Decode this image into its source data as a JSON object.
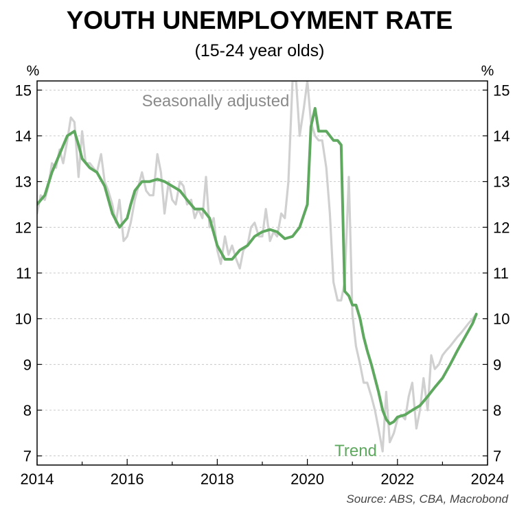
{
  "chart_data": {
    "type": "line",
    "title": "YOUTH UNEMPLOYMENT RATE",
    "subtitle": "(15-24 year olds)",
    "y_unit_left": "%",
    "y_unit_right": "%",
    "xlim": [
      2014,
      2024
    ],
    "ylim": [
      6.8,
      15.2
    ],
    "xticks": [
      "2014",
      "2016",
      "2018",
      "2020",
      "2022",
      "2024"
    ],
    "yticks": [
      "7",
      "8",
      "9",
      "10",
      "11",
      "12",
      "13",
      "14",
      "15"
    ],
    "grid": true,
    "source": "Source: ABS, CBA, Macrobond",
    "annotations": {
      "seasonally_adjusted": "Seasonally adjusted",
      "trend": "Trend"
    },
    "colors": {
      "seasonally_adjusted": "#d0d0d0",
      "trend": "#5fa85f",
      "annotation_sa": "#8a8a8a",
      "annotation_trend": "#5fa85f",
      "grid": "#c8c8c8"
    },
    "series": [
      {
        "name": "Seasonally adjusted",
        "x": [
          2014.0,
          2014.08,
          2014.17,
          2014.25,
          2014.33,
          2014.42,
          2014.5,
          2014.58,
          2014.67,
          2014.75,
          2014.83,
          2014.92,
          2015.0,
          2015.08,
          2015.17,
          2015.25,
          2015.33,
          2015.42,
          2015.5,
          2015.58,
          2015.67,
          2015.75,
          2015.83,
          2015.92,
          2016.0,
          2016.08,
          2016.17,
          2016.25,
          2016.33,
          2016.42,
          2016.5,
          2016.58,
          2016.67,
          2016.75,
          2016.83,
          2016.92,
          2017.0,
          2017.08,
          2017.17,
          2017.25,
          2017.33,
          2017.42,
          2017.5,
          2017.58,
          2017.67,
          2017.75,
          2017.83,
          2017.92,
          2018.0,
          2018.08,
          2018.17,
          2018.25,
          2018.33,
          2018.42,
          2018.5,
          2018.58,
          2018.67,
          2018.75,
          2018.83,
          2018.92,
          2019.0,
          2019.08,
          2019.17,
          2019.25,
          2019.33,
          2019.42,
          2019.5,
          2019.58,
          2019.67,
          2019.75,
          2019.83,
          2019.92,
          2020.0,
          2020.08,
          2020.17,
          2020.25,
          2020.33,
          2020.42,
          2020.5,
          2020.58,
          2020.67,
          2020.75,
          2020.83,
          2020.92,
          2021.0,
          2021.08,
          2021.17,
          2021.25,
          2021.33,
          2021.42,
          2021.5,
          2021.58,
          2021.67,
          2021.75,
          2021.83,
          2021.92,
          2022.0,
          2022.08,
          2022.17,
          2022.25,
          2022.33,
          2022.42,
          2022.5,
          2022.58,
          2022.67,
          2022.75,
          2022.83,
          2022.92,
          2023.0,
          2023.08,
          2023.17,
          2023.25,
          2023.33,
          2023.42,
          2023.5,
          2023.58,
          2023.67,
          2023.75
        ],
        "values": [
          12.3,
          12.7,
          12.6,
          12.9,
          13.4,
          13.3,
          13.7,
          13.4,
          13.9,
          14.4,
          14.3,
          13.1,
          14.1,
          13.4,
          13.4,
          13.3,
          13.2,
          13.6,
          13.0,
          12.8,
          12.5,
          12.1,
          12.6,
          11.7,
          11.8,
          12.1,
          12.6,
          12.9,
          13.2,
          12.8,
          12.7,
          12.7,
          13.6,
          13.2,
          12.3,
          13.0,
          12.6,
          12.5,
          13.0,
          12.9,
          12.5,
          12.6,
          12.2,
          12.4,
          12.2,
          13.1,
          12.0,
          12.2,
          11.5,
          11.2,
          11.8,
          11.4,
          11.6,
          11.3,
          11.1,
          11.5,
          11.6,
          12.0,
          12.1,
          11.8,
          11.8,
          12.4,
          11.7,
          11.9,
          11.8,
          12.3,
          12.2,
          13.0,
          15.2,
          15.2,
          14.0,
          14.6,
          15.2,
          14.3,
          14.0,
          13.9,
          13.9,
          13.3,
          12.3,
          10.8,
          10.4,
          10.4,
          10.8,
          13.1,
          10.1,
          9.4,
          9.0,
          8.6,
          8.6,
          8.3,
          8.0,
          7.6,
          7.1,
          8.4,
          7.3,
          7.5,
          7.8,
          7.9,
          7.8,
          8.3,
          8.6,
          7.6,
          8.0,
          8.7,
          8.0,
          9.2,
          8.9,
          9.0,
          9.2,
          9.3,
          9.4,
          9.5,
          9.6,
          9.7,
          9.8,
          9.9,
          10.0,
          10.1
        ]
      },
      {
        "name": "Trend",
        "x": [
          2014.0,
          2014.17,
          2014.33,
          2014.5,
          2014.67,
          2014.83,
          2014.92,
          2015.0,
          2015.17,
          2015.33,
          2015.5,
          2015.67,
          2015.83,
          2016.0,
          2016.08,
          2016.17,
          2016.33,
          2016.5,
          2016.67,
          2016.83,
          2017.0,
          2017.17,
          2017.33,
          2017.5,
          2017.67,
          2017.83,
          2018.0,
          2018.17,
          2018.33,
          2018.5,
          2018.67,
          2018.83,
          2019.0,
          2019.17,
          2019.33,
          2019.5,
          2019.67,
          2019.83,
          2020.0,
          2020.08,
          2020.17,
          2020.25,
          2020.33,
          2020.42,
          2020.5,
          2020.58,
          2020.67,
          2020.75,
          2020.83,
          2020.92,
          2021.0,
          2021.08,
          2021.17,
          2021.25,
          2021.33,
          2021.42,
          2021.5,
          2021.58,
          2021.67,
          2021.75,
          2021.83,
          2021.92,
          2022.0,
          2022.17,
          2022.33,
          2022.5,
          2022.67,
          2022.83,
          2023.0,
          2023.17,
          2023.33,
          2023.5,
          2023.67,
          2023.75
        ],
        "values": [
          12.5,
          12.7,
          13.2,
          13.6,
          14.0,
          14.1,
          13.8,
          13.5,
          13.3,
          13.2,
          12.9,
          12.3,
          12.0,
          12.2,
          12.5,
          12.8,
          13.0,
          13.0,
          13.05,
          13.0,
          12.9,
          12.8,
          12.6,
          12.4,
          12.4,
          12.2,
          11.6,
          11.3,
          11.3,
          11.5,
          11.6,
          11.8,
          11.9,
          11.95,
          11.9,
          11.75,
          11.8,
          12.0,
          12.5,
          14.2,
          14.6,
          14.1,
          14.1,
          14.1,
          14.0,
          13.9,
          13.9,
          13.8,
          10.6,
          10.5,
          10.3,
          10.3,
          10.0,
          9.6,
          9.3,
          9.0,
          8.7,
          8.4,
          8.0,
          7.8,
          7.7,
          7.75,
          7.85,
          7.9,
          8.0,
          8.1,
          8.3,
          8.5,
          8.7,
          9.0,
          9.3,
          9.6,
          9.9,
          10.1
        ]
      }
    ]
  }
}
